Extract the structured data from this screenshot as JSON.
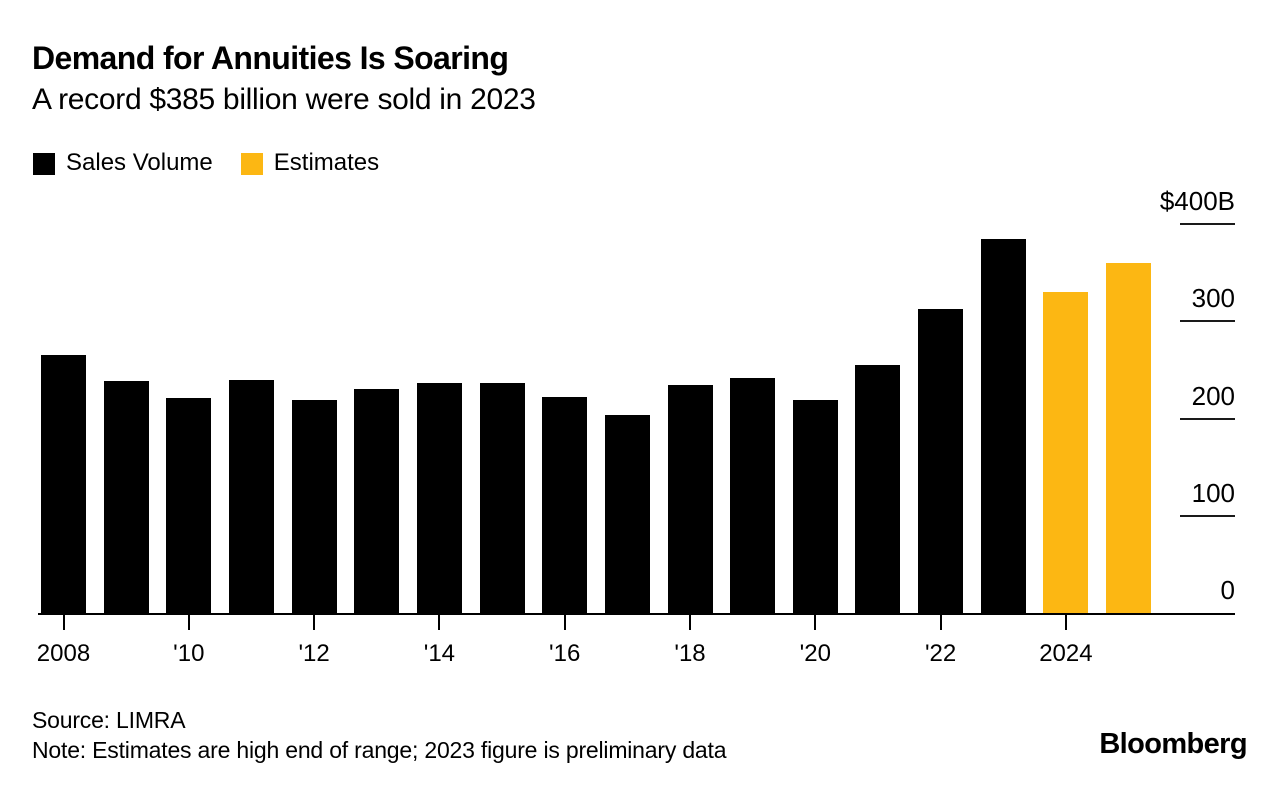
{
  "header": {
    "title": "Demand for Annuities Is Soaring",
    "subtitle": "A record $385 billion were sold in 2023"
  },
  "legend": {
    "items": [
      {
        "label": "Sales Volume",
        "color": "#000000"
      },
      {
        "label": "Estimates",
        "color": "#fcb713"
      }
    ]
  },
  "footer": {
    "source": "Source: LIMRA",
    "note": "Note: Estimates are high end of range; 2023 figure is preliminary data",
    "logo": "Bloomberg"
  },
  "chart_data": {
    "type": "bar",
    "title": "Demand for Annuities Is Soaring",
    "subtitle": "A record $385 billion were sold in 2023",
    "unit": "USD billions",
    "categories": [
      "2008",
      "2009",
      "2010",
      "2011",
      "2012",
      "2013",
      "2014",
      "2015",
      "2016",
      "2017",
      "2018",
      "2019",
      "2020",
      "2021",
      "2022",
      "2023",
      "2024",
      "2025"
    ],
    "series": [
      {
        "name": "Sales Volume",
        "color": "#000000",
        "values": [
          265,
          239,
          221,
          240,
          219,
          230,
          236,
          237,
          222,
          204,
          234,
          242,
          219,
          255,
          313,
          385,
          null,
          null
        ]
      },
      {
        "name": "Estimates",
        "color": "#fcb713",
        "values": [
          null,
          null,
          null,
          null,
          null,
          null,
          null,
          null,
          null,
          null,
          null,
          null,
          null,
          null,
          null,
          null,
          330,
          360
        ]
      }
    ],
    "ylim": [
      0,
      400
    ],
    "yticks": [
      {
        "label": "$400B",
        "value": 400
      },
      {
        "label": "300",
        "value": 300
      },
      {
        "label": "200",
        "value": 200
      },
      {
        "label": "100",
        "value": 100
      },
      {
        "label": "0",
        "value": 0
      }
    ],
    "xticks": [
      {
        "label": "2008",
        "category": "2008"
      },
      {
        "label": "'10",
        "category": "2010"
      },
      {
        "label": "'12",
        "category": "2012"
      },
      {
        "label": "'14",
        "category": "2014"
      },
      {
        "label": "'16",
        "category": "2016"
      },
      {
        "label": "'18",
        "category": "2018"
      },
      {
        "label": "'20",
        "category": "2020"
      },
      {
        "label": "'22",
        "category": "2022"
      },
      {
        "label": "2024",
        "category": "2024"
      }
    ],
    "legend_position": "top-left",
    "axis_side": "right",
    "grid": false
  }
}
